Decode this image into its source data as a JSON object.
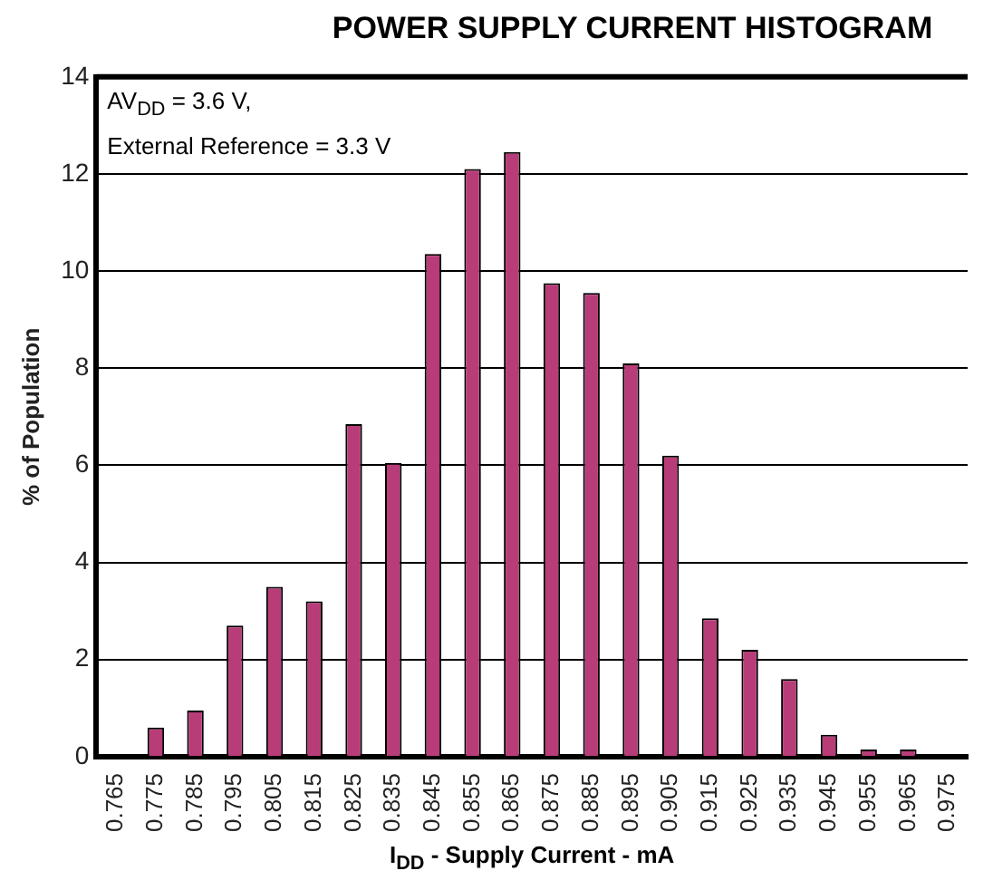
{
  "chart_data": {
    "type": "bar",
    "title": "POWER SUPPLY CURRENT HISTOGRAM",
    "xlabel": "I$_{DD}$ - Supply Current - mA",
    "ylabel": "% of Population",
    "annotations": [
      "AV$_{DD}$ = 3.6 V,",
      "External Reference = 3.3 V"
    ],
    "categories": [
      "0.765",
      "0.775",
      "0.785",
      "0.795",
      "0.805",
      "0.815",
      "0.825",
      "0.835",
      "0.845",
      "0.855",
      "0.865",
      "0.875",
      "0.885",
      "0.895",
      "0.905",
      "0.915",
      "0.925",
      "0.935",
      "0.945",
      "0.955",
      "0.965",
      "0.975"
    ],
    "values": [
      0,
      0.6,
      0.95,
      2.7,
      3.5,
      3.2,
      6.85,
      6.05,
      10.35,
      12.1,
      12.45,
      9.75,
      9.55,
      8.1,
      6.2,
      2.85,
      2.2,
      1.6,
      0.45,
      0.15,
      0.15,
      0
    ],
    "color": "#b83c78",
    "ylim": [
      0,
      14
    ],
    "yticks": [
      0,
      2,
      4,
      6,
      8,
      10,
      12,
      14
    ],
    "grid": "y"
  }
}
